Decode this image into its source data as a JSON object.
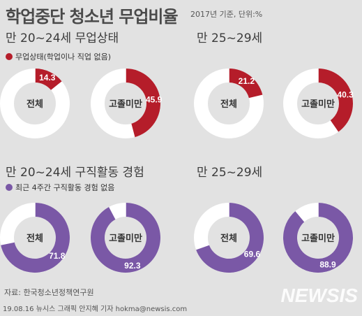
{
  "title": "학업중단 청소년 무업비율",
  "subtitle": "2017년 기준, 단위:%",
  "sections": {
    "top_left_label": "만 20~24세 무업상태",
    "top_right_label": "만 25~29세",
    "top_legend": "무업상태(학업이나 직업 없음)",
    "bottom_left_label": "만 20~24세 구직활동 경험",
    "bottom_right_label": "만 25~29세",
    "bottom_legend": "최근 4주간 구직활동 경험 없음"
  },
  "colors": {
    "red": "#b51d2a",
    "purple": "#7a58a6",
    "ring_bg": "#ffffff",
    "background": "#e2e2e2"
  },
  "chart_data": [
    {
      "type": "pie",
      "group": "무업상태",
      "age": "만 20~24세",
      "label": "전체",
      "value": 14.3
    },
    {
      "type": "pie",
      "group": "무업상태",
      "age": "만 20~24세",
      "label": "고졸미만",
      "value": 45.9
    },
    {
      "type": "pie",
      "group": "무업상태",
      "age": "만 25~29세",
      "label": "전체",
      "value": 21.2
    },
    {
      "type": "pie",
      "group": "무업상태",
      "age": "만 25~29세",
      "label": "고졸미만",
      "value": 40.3
    },
    {
      "type": "pie",
      "group": "구직활동 경험 없음",
      "age": "만 20~24세",
      "label": "전체",
      "value": 71.8
    },
    {
      "type": "pie",
      "group": "구직활동 경험 없음",
      "age": "만 20~24세",
      "label": "고졸미만",
      "value": 92.3
    },
    {
      "type": "pie",
      "group": "구직활동 경험 없음",
      "age": "만 25~29세",
      "label": "전체",
      "value": 69.6
    },
    {
      "type": "pie",
      "group": "구직활동 경험 없음",
      "age": "만 25~29세",
      "label": "고졸미만",
      "value": 88.9
    }
  ],
  "source": "자료: 한국청소년정책연구원",
  "footer": "19.08.16 뉴시스 그래픽 안지혜 기자 hokma@newsis.com",
  "logo_text": "NEWSIS"
}
